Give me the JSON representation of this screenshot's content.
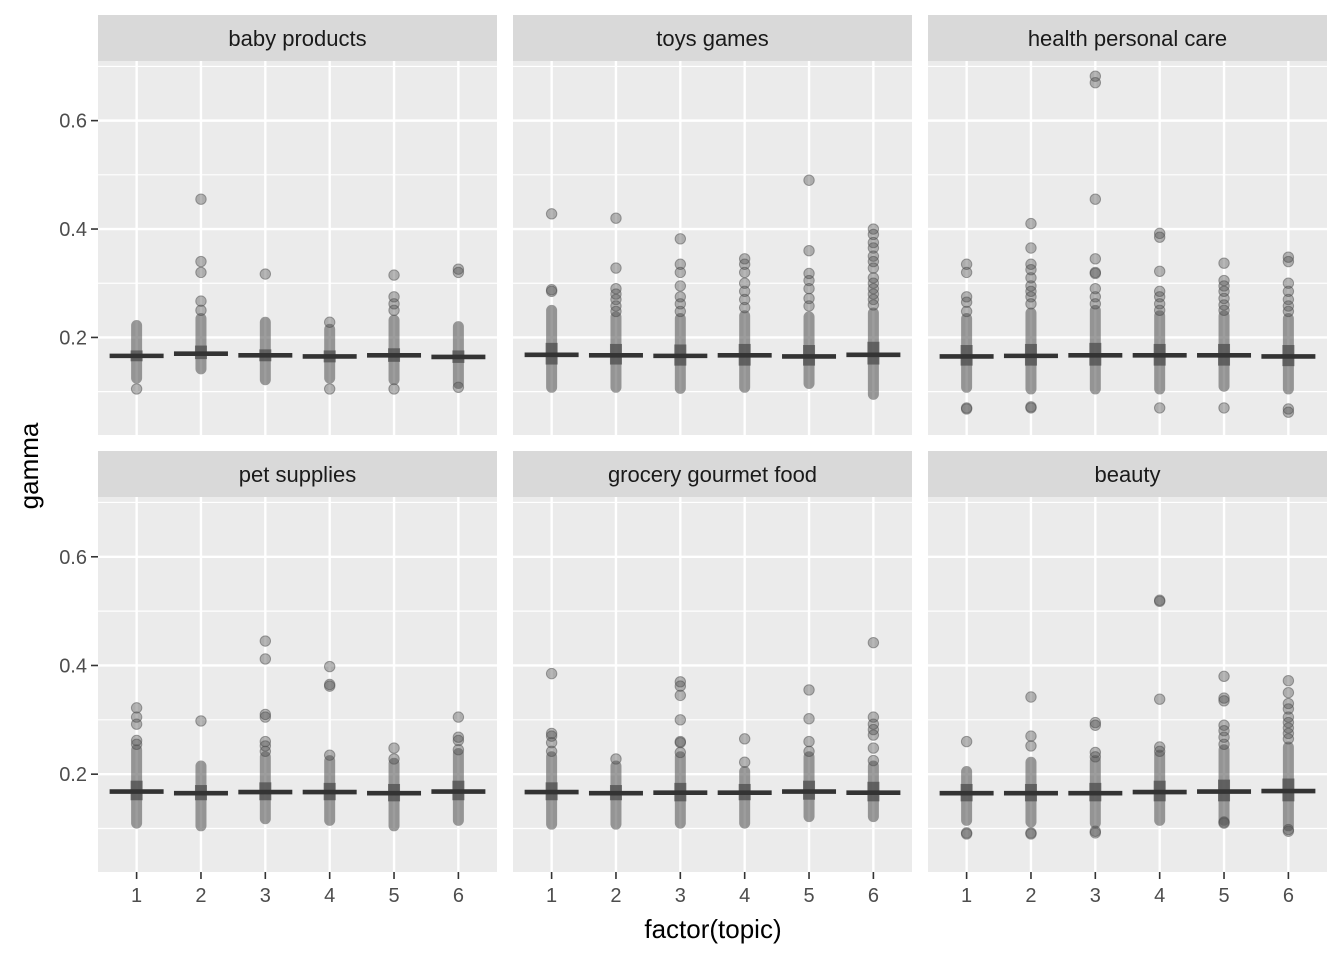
{
  "chart_data": {
    "type": "boxplot",
    "xlabel": "factor(topic)",
    "ylabel": "gamma",
    "ylim": [
      0.02,
      0.71
    ],
    "y_ticks": [
      0.2,
      0.4,
      0.6
    ],
    "y_tick_labels": [
      "0.2",
      "0.4",
      "0.6"
    ],
    "categories": [
      "1",
      "2",
      "3",
      "4",
      "5",
      "6"
    ],
    "grid": true,
    "layout": "facet-grid 2 rows x 3 columns, shared axes",
    "colors": {
      "panel": "#ebebeb",
      "strip": "#d9d9d9",
      "grid": "#ffffff",
      "points": "#4d4d4d",
      "median": "#333333"
    },
    "panels": [
      {
        "title": "baby products",
        "groups": [
          {
            "topic": "1",
            "median": 0.166,
            "q1": 0.156,
            "q3": 0.176,
            "whisker_low": 0.125,
            "whisker_high": 0.222,
            "outliers": [
              0.105
            ]
          },
          {
            "topic": "2",
            "median": 0.17,
            "q1": 0.16,
            "q3": 0.185,
            "whisker_low": 0.142,
            "whisker_high": 0.235,
            "outliers": [
              0.455,
              0.34,
              0.32,
              0.267,
              0.25
            ]
          },
          {
            "topic": "3",
            "median": 0.167,
            "q1": 0.156,
            "q3": 0.178,
            "whisker_low": 0.122,
            "whisker_high": 0.228,
            "outliers": [
              0.317
            ]
          },
          {
            "topic": "4",
            "median": 0.165,
            "q1": 0.154,
            "q3": 0.176,
            "whisker_low": 0.125,
            "whisker_high": 0.215,
            "outliers": [
              0.228,
              0.105
            ]
          },
          {
            "topic": "5",
            "median": 0.167,
            "q1": 0.155,
            "q3": 0.18,
            "whisker_low": 0.122,
            "whisker_high": 0.232,
            "outliers": [
              0.315,
              0.275,
              0.262,
              0.25,
              0.105
            ]
          },
          {
            "topic": "6",
            "median": 0.164,
            "q1": 0.153,
            "q3": 0.176,
            "whisker_low": 0.115,
            "whisker_high": 0.22,
            "outliers": [
              0.326,
              0.32,
              0.108
            ]
          }
        ]
      },
      {
        "title": "toys games",
        "groups": [
          {
            "topic": "1",
            "median": 0.168,
            "q1": 0.15,
            "q3": 0.19,
            "whisker_low": 0.108,
            "whisker_high": 0.25,
            "outliers": [
              0.428,
              0.288,
              0.285
            ]
          },
          {
            "topic": "2",
            "median": 0.167,
            "q1": 0.15,
            "q3": 0.188,
            "whisker_low": 0.108,
            "whisker_high": 0.238,
            "outliers": [
              0.42,
              0.328,
              0.29,
              0.28,
              0.27,
              0.258,
              0.248
            ]
          },
          {
            "topic": "3",
            "median": 0.166,
            "q1": 0.148,
            "q3": 0.187,
            "whisker_low": 0.106,
            "whisker_high": 0.235,
            "outliers": [
              0.382,
              0.335,
              0.32,
              0.295,
              0.275,
              0.262,
              0.248
            ]
          },
          {
            "topic": "4",
            "median": 0.167,
            "q1": 0.148,
            "q3": 0.188,
            "whisker_low": 0.108,
            "whisker_high": 0.24,
            "outliers": [
              0.345,
              0.335,
              0.32,
              0.3,
              0.285,
              0.27,
              0.255
            ]
          },
          {
            "topic": "5",
            "median": 0.165,
            "q1": 0.148,
            "q3": 0.186,
            "whisker_low": 0.115,
            "whisker_high": 0.238,
            "outliers": [
              0.49,
              0.36,
              0.318,
              0.305,
              0.29,
              0.272,
              0.258
            ]
          },
          {
            "topic": "6",
            "median": 0.168,
            "q1": 0.15,
            "q3": 0.192,
            "whisker_low": 0.095,
            "whisker_high": 0.245,
            "outliers": [
              0.4,
              0.39,
              0.375,
              0.365,
              0.35,
              0.34,
              0.328,
              0.31,
              0.3,
              0.29,
              0.28,
              0.27,
              0.26
            ]
          }
        ]
      },
      {
        "title": "health personal care",
        "groups": [
          {
            "topic": "1",
            "median": 0.165,
            "q1": 0.148,
            "q3": 0.186,
            "whisker_low": 0.108,
            "whisker_high": 0.235,
            "outliers": [
              0.335,
              0.32,
              0.275,
              0.265,
              0.248,
              0.07,
              0.068
            ]
          },
          {
            "topic": "2",
            "median": 0.166,
            "q1": 0.148,
            "q3": 0.188,
            "whisker_low": 0.105,
            "whisker_high": 0.245,
            "outliers": [
              0.41,
              0.365,
              0.335,
              0.325,
              0.31,
              0.295,
              0.285,
              0.275,
              0.262,
              0.072,
              0.07
            ]
          },
          {
            "topic": "3",
            "median": 0.167,
            "q1": 0.148,
            "q3": 0.19,
            "whisker_low": 0.105,
            "whisker_high": 0.25,
            "outliers": [
              0.682,
              0.67,
              0.455,
              0.345,
              0.32,
              0.318,
              0.29,
              0.275,
              0.262
            ]
          },
          {
            "topic": "4",
            "median": 0.167,
            "q1": 0.148,
            "q3": 0.188,
            "whisker_low": 0.105,
            "whisker_high": 0.24,
            "outliers": [
              0.392,
              0.385,
              0.322,
              0.285,
              0.275,
              0.262,
              0.25,
              0.07
            ]
          },
          {
            "topic": "5",
            "median": 0.167,
            "q1": 0.148,
            "q3": 0.188,
            "whisker_low": 0.11,
            "whisker_high": 0.24,
            "outliers": [
              0.337,
              0.305,
              0.295,
              0.285,
              0.272,
              0.26,
              0.25,
              0.07
            ]
          },
          {
            "topic": "6",
            "median": 0.165,
            "q1": 0.147,
            "q3": 0.186,
            "whisker_low": 0.105,
            "whisker_high": 0.235,
            "outliers": [
              0.348,
              0.34,
              0.3,
              0.285,
              0.27,
              0.258,
              0.248,
              0.068,
              0.062
            ]
          }
        ]
      },
      {
        "title": "pet supplies",
        "groups": [
          {
            "topic": "1",
            "median": 0.168,
            "q1": 0.152,
            "q3": 0.188,
            "whisker_low": 0.11,
            "whisker_high": 0.245,
            "outliers": [
              0.322,
              0.305,
              0.292,
              0.262,
              0.255
            ]
          },
          {
            "topic": "2",
            "median": 0.165,
            "q1": 0.152,
            "q3": 0.18,
            "whisker_low": 0.105,
            "whisker_high": 0.215,
            "outliers": [
              0.298
            ]
          },
          {
            "topic": "3",
            "median": 0.167,
            "q1": 0.152,
            "q3": 0.185,
            "whisker_low": 0.118,
            "whisker_high": 0.232,
            "outliers": [
              0.445,
              0.412,
              0.31,
              0.305,
              0.26,
              0.252,
              0.242
            ]
          },
          {
            "topic": "4",
            "median": 0.167,
            "q1": 0.152,
            "q3": 0.184,
            "whisker_low": 0.115,
            "whisker_high": 0.225,
            "outliers": [
              0.398,
              0.365,
              0.362,
              0.235
            ]
          },
          {
            "topic": "5",
            "median": 0.165,
            "q1": 0.15,
            "q3": 0.182,
            "whisker_low": 0.105,
            "whisker_high": 0.22,
            "outliers": [
              0.248,
              0.228
            ]
          },
          {
            "topic": "6",
            "median": 0.168,
            "q1": 0.152,
            "q3": 0.188,
            "whisker_low": 0.115,
            "whisker_high": 0.238,
            "outliers": [
              0.305,
              0.268,
              0.262,
              0.245
            ]
          }
        ]
      },
      {
        "title": "grocery gourmet food",
        "groups": [
          {
            "topic": "1",
            "median": 0.167,
            "q1": 0.152,
            "q3": 0.185,
            "whisker_low": 0.108,
            "whisker_high": 0.232,
            "outliers": [
              0.385,
              0.275,
              0.27,
              0.258,
              0.242
            ]
          },
          {
            "topic": "2",
            "median": 0.165,
            "q1": 0.152,
            "q3": 0.18,
            "whisker_low": 0.108,
            "whisker_high": 0.215,
            "outliers": [
              0.228
            ]
          },
          {
            "topic": "3",
            "median": 0.166,
            "q1": 0.15,
            "q3": 0.184,
            "whisker_low": 0.11,
            "whisker_high": 0.232,
            "outliers": [
              0.37,
              0.362,
              0.345,
              0.3,
              0.26,
              0.258,
              0.24
            ]
          },
          {
            "topic": "4",
            "median": 0.166,
            "q1": 0.152,
            "q3": 0.182,
            "whisker_low": 0.11,
            "whisker_high": 0.205,
            "outliers": [
              0.265,
              0.222
            ]
          },
          {
            "topic": "5",
            "median": 0.168,
            "q1": 0.153,
            "q3": 0.188,
            "whisker_low": 0.122,
            "whisker_high": 0.232,
            "outliers": [
              0.355,
              0.302,
              0.26,
              0.242
            ]
          },
          {
            "topic": "6",
            "median": 0.166,
            "q1": 0.15,
            "q3": 0.186,
            "whisker_low": 0.122,
            "whisker_high": 0.215,
            "outliers": [
              0.442,
              0.305,
              0.292,
              0.282,
              0.272,
              0.248,
              0.225
            ]
          }
        ]
      },
      {
        "title": "beauty",
        "groups": [
          {
            "topic": "1",
            "median": 0.165,
            "q1": 0.15,
            "q3": 0.182,
            "whisker_low": 0.115,
            "whisker_high": 0.205,
            "outliers": [
              0.26,
              0.092,
              0.09
            ]
          },
          {
            "topic": "2",
            "median": 0.165,
            "q1": 0.15,
            "q3": 0.182,
            "whisker_low": 0.112,
            "whisker_high": 0.222,
            "outliers": [
              0.342,
              0.27,
              0.252,
              0.092,
              0.09
            ]
          },
          {
            "topic": "3",
            "median": 0.165,
            "q1": 0.15,
            "q3": 0.184,
            "whisker_low": 0.11,
            "whisker_high": 0.225,
            "outliers": [
              0.295,
              0.29,
              0.24,
              0.232,
              0.095,
              0.092
            ]
          },
          {
            "topic": "4",
            "median": 0.167,
            "q1": 0.15,
            "q3": 0.188,
            "whisker_low": 0.115,
            "whisker_high": 0.235,
            "outliers": [
              0.52,
              0.518,
              0.338,
              0.25,
              0.242
            ]
          },
          {
            "topic": "5",
            "median": 0.168,
            "q1": 0.15,
            "q3": 0.19,
            "whisker_low": 0.115,
            "whisker_high": 0.245,
            "outliers": [
              0.38,
              0.34,
              0.335,
              0.29,
              0.28,
              0.268,
              0.255,
              0.112,
              0.11
            ]
          },
          {
            "topic": "6",
            "median": 0.169,
            "q1": 0.15,
            "q3": 0.192,
            "whisker_low": 0.105,
            "whisker_high": 0.25,
            "outliers": [
              0.372,
              0.35,
              0.33,
              0.32,
              0.305,
              0.295,
              0.285,
              0.275,
              0.265,
              0.098,
              0.095
            ]
          }
        ]
      }
    ]
  }
}
